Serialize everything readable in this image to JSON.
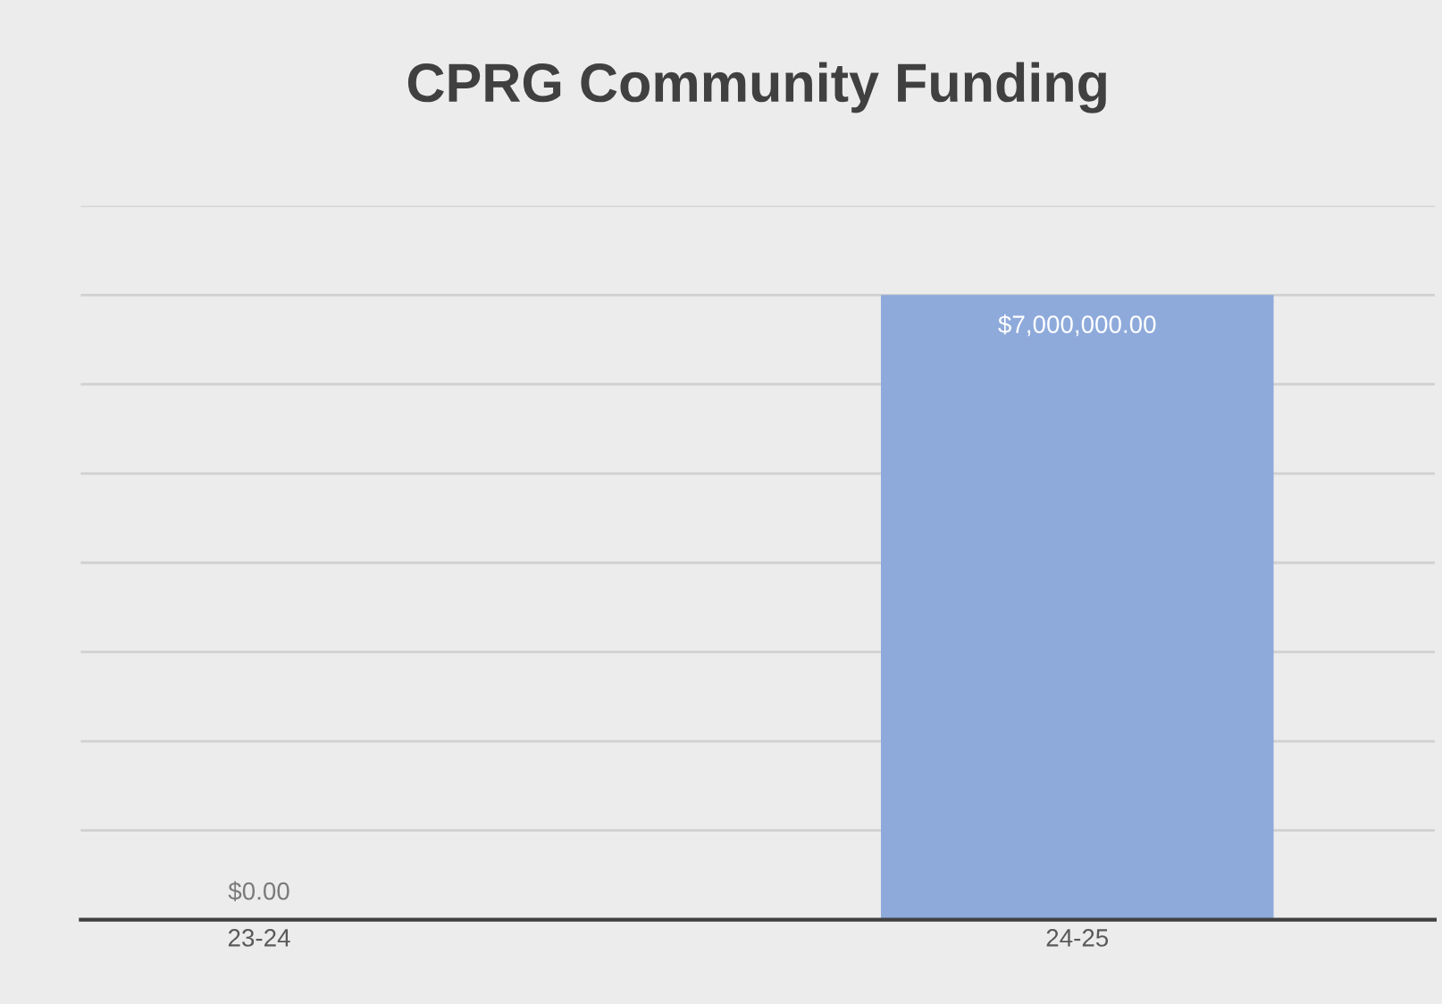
{
  "chart_data": {
    "type": "bar",
    "title": "CPRG Community Funding",
    "categories": [
      "23-24",
      "24-25"
    ],
    "values": [
      0,
      7000000
    ],
    "value_labels": [
      "$0.00",
      "$7,000,000.00"
    ],
    "color": "#8eaadb",
    "ylim": [
      0,
      8000000
    ],
    "yticks": [
      {
        "value": 0,
        "label": null
      },
      {
        "value": 1000000,
        "label": null
      },
      {
        "value": 2000000,
        "label": null
      },
      {
        "value": 3000000,
        "label": null
      },
      {
        "value": 4000000,
        "label": null
      },
      {
        "value": 5000000,
        "label": null
      },
      {
        "value": 6000000,
        "label": null
      },
      {
        "value": 7000000,
        "label": null
      },
      {
        "value": 8000000,
        "label": null
      }
    ],
    "grid": "y",
    "legend": false
  }
}
